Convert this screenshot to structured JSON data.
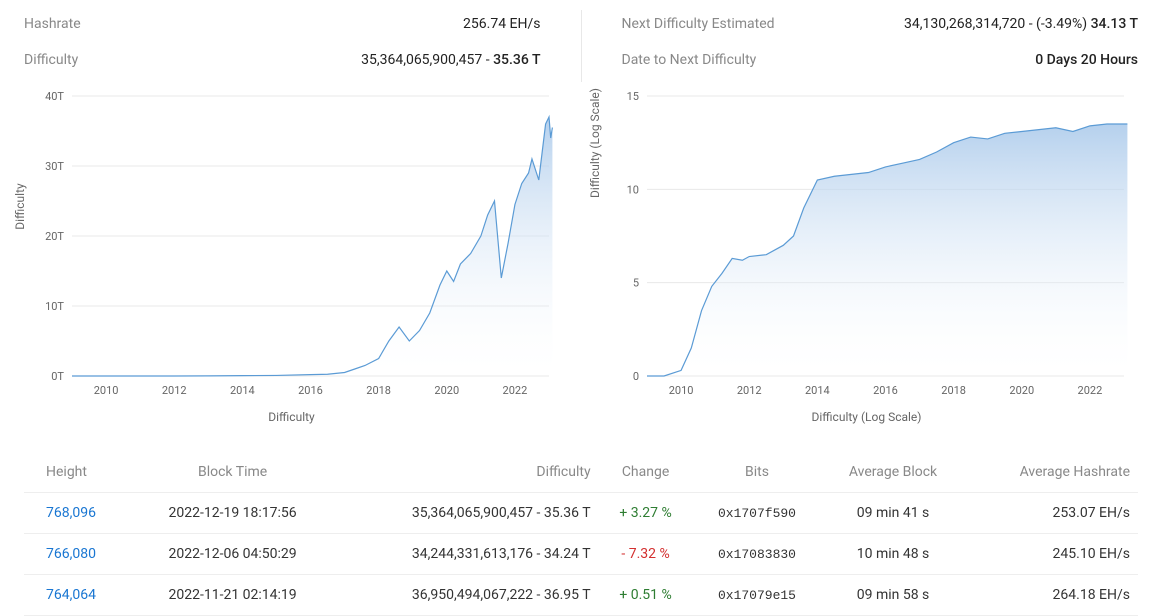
{
  "stats": {
    "left": [
      {
        "label": "Hashrate",
        "value": "256.74 EH/s",
        "suffix": ""
      },
      {
        "label": "Difficulty",
        "value": "35,364,065,900,457 - ",
        "suffix": "35.36 T"
      }
    ],
    "right": [
      {
        "label": "Next Difficulty Estimated",
        "value": "34,130,268,314,720 - (-3.49%) ",
        "suffix": "34.13 T"
      },
      {
        "label": "Date to Next Difficulty",
        "value": "",
        "suffix": "0 Days 20 Hours"
      }
    ]
  },
  "chart1": {
    "type": "area",
    "ylabel": "Difficulty",
    "xlabel": "Difficulty",
    "ylim": [
      0,
      40
    ],
    "ytick_step": 10,
    "ytick_suffix": "T",
    "xlim": [
      2009,
      2023
    ],
    "xticks": [
      2010,
      2012,
      2014,
      2016,
      2018,
      2020,
      2022
    ],
    "line_color": "#5b9bd5",
    "fill_top_color": "#a8c8ea",
    "fill_bottom_color": "#ffffff",
    "grid_color": "#e8e8e8",
    "background_color": "#ffffff",
    "line_width": 1.2,
    "data": [
      [
        2009,
        0
      ],
      [
        2010,
        0
      ],
      [
        2011,
        0
      ],
      [
        2012,
        0
      ],
      [
        2013,
        0.02
      ],
      [
        2014,
        0.05
      ],
      [
        2015,
        0.08
      ],
      [
        2016,
        0.2
      ],
      [
        2016.5,
        0.25
      ],
      [
        2017,
        0.5
      ],
      [
        2017.3,
        1.0
      ],
      [
        2017.6,
        1.5
      ],
      [
        2018,
        2.5
      ],
      [
        2018.3,
        5.0
      ],
      [
        2018.6,
        7.0
      ],
      [
        2018.9,
        5.0
      ],
      [
        2019.2,
        6.5
      ],
      [
        2019.5,
        9.0
      ],
      [
        2019.8,
        13.0
      ],
      [
        2020,
        15.0
      ],
      [
        2020.2,
        13.5
      ],
      [
        2020.4,
        16.0
      ],
      [
        2020.7,
        17.5
      ],
      [
        2021,
        20.0
      ],
      [
        2021.2,
        23.0
      ],
      [
        2021.4,
        25.0
      ],
      [
        2021.5,
        19.5
      ],
      [
        2021.6,
        14.0
      ],
      [
        2021.8,
        19.0
      ],
      [
        2022,
        24.5
      ],
      [
        2022.2,
        27.5
      ],
      [
        2022.4,
        29.0
      ],
      [
        2022.5,
        31.0
      ],
      [
        2022.7,
        28.0
      ],
      [
        2022.8,
        32.0
      ],
      [
        2022.9,
        36.0
      ],
      [
        2023,
        37.0
      ],
      [
        2023.05,
        34.0
      ],
      [
        2023.1,
        35.5
      ]
    ]
  },
  "chart2": {
    "type": "area",
    "ylabel": "Difficulty (Log Scale)",
    "xlabel": "Difficulty (Log Scale)",
    "ylim": [
      0,
      15
    ],
    "ytick_step": 5,
    "ytick_suffix": "",
    "xlim": [
      2009,
      2023
    ],
    "xticks": [
      2010,
      2012,
      2014,
      2016,
      2018,
      2020,
      2022
    ],
    "line_color": "#5b9bd5",
    "fill_top_color": "#a8c8ea",
    "fill_bottom_color": "#ffffff",
    "grid_color": "#e8e8e8",
    "background_color": "#ffffff",
    "line_width": 1.2,
    "data": [
      [
        2009,
        0
      ],
      [
        2009.5,
        0
      ],
      [
        2010,
        0.3
      ],
      [
        2010.3,
        1.5
      ],
      [
        2010.6,
        3.5
      ],
      [
        2010.9,
        4.8
      ],
      [
        2011.2,
        5.5
      ],
      [
        2011.5,
        6.3
      ],
      [
        2011.8,
        6.2
      ],
      [
        2012,
        6.4
      ],
      [
        2012.5,
        6.5
      ],
      [
        2013,
        7.0
      ],
      [
        2013.3,
        7.5
      ],
      [
        2013.6,
        9.0
      ],
      [
        2014,
        10.5
      ],
      [
        2014.5,
        10.7
      ],
      [
        2015,
        10.8
      ],
      [
        2015.5,
        10.9
      ],
      [
        2016,
        11.2
      ],
      [
        2016.5,
        11.4
      ],
      [
        2017,
        11.6
      ],
      [
        2017.5,
        12.0
      ],
      [
        2018,
        12.5
      ],
      [
        2018.5,
        12.8
      ],
      [
        2019,
        12.7
      ],
      [
        2019.5,
        13.0
      ],
      [
        2020,
        13.1
      ],
      [
        2020.5,
        13.2
      ],
      [
        2021,
        13.3
      ],
      [
        2021.5,
        13.1
      ],
      [
        2022,
        13.4
      ],
      [
        2022.5,
        13.5
      ],
      [
        2023,
        13.5
      ],
      [
        2023.1,
        13.5
      ]
    ]
  },
  "table": {
    "columns": [
      "Height",
      "Block Time",
      "Difficulty",
      "Change",
      "Bits",
      "Average Block",
      "Average Hashrate"
    ],
    "rows": [
      {
        "height": "768,096",
        "time": "2022-12-19 18:17:56",
        "diff": "35,364,065,900,457 - 35.36 T",
        "change": "+ 3.27 %",
        "change_sign": "pos",
        "bits": "0x1707f590",
        "avg_block": "09 min 41 s",
        "avg_hash": "253.07 EH/s"
      },
      {
        "height": "766,080",
        "time": "2022-12-06 04:50:29",
        "diff": "34,244,331,613,176 - 34.24 T",
        "change": "- 7.32 %",
        "change_sign": "neg",
        "bits": "0x17083830",
        "avg_block": "10 min 48 s",
        "avg_hash": "245.10 EH/s"
      },
      {
        "height": "764,064",
        "time": "2022-11-21 02:14:19",
        "diff": "36,950,494,067,222 - 36.95 T",
        "change": "+ 0.51 %",
        "change_sign": "pos",
        "bits": "0x17079e15",
        "avg_block": "09 min 58 s",
        "avg_hash": "264.18 EH/s"
      }
    ]
  }
}
